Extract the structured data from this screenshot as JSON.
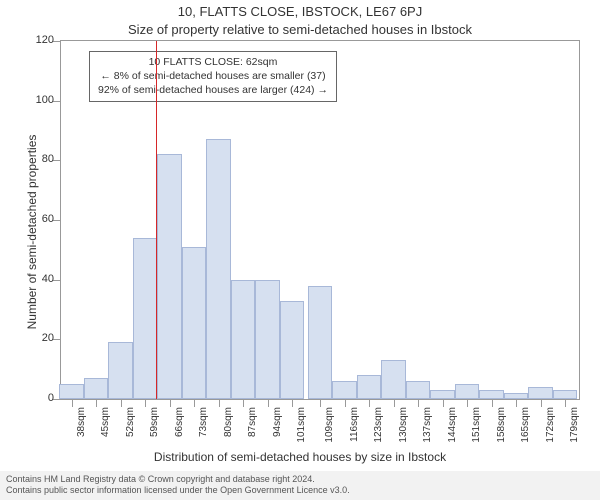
{
  "chart": {
    "type": "histogram",
    "title1": "10, FLATTS CLOSE, IBSTOCK, LE67 6PJ",
    "title2": "Size of property relative to semi-detached houses in Ibstock",
    "ylabel": "Number of semi-detached properties",
    "xlabel": "Distribution of semi-detached houses by size in Ibstock",
    "background_color": "#ffffff",
    "axis_color": "#999999",
    "bar_fill": "#d6e0f0",
    "bar_stroke": "#a8b8d8",
    "ref_line_color": "#d62728",
    "ref_line_x": 62,
    "xlim": [
      35,
      183
    ],
    "ylim": [
      0,
      120
    ],
    "ytick_step": 20,
    "yticks": [
      0,
      20,
      40,
      60,
      80,
      100,
      120
    ],
    "xtick_suffix": "sqm",
    "xticks": [
      38,
      45,
      52,
      59,
      66,
      73,
      80,
      87,
      94,
      101,
      109,
      116,
      123,
      130,
      137,
      144,
      151,
      158,
      165,
      172,
      179
    ],
    "bars": [
      {
        "x": 38,
        "v": 5
      },
      {
        "x": 45,
        "v": 7
      },
      {
        "x": 52,
        "v": 19
      },
      {
        "x": 59,
        "v": 54
      },
      {
        "x": 66,
        "v": 82
      },
      {
        "x": 73,
        "v": 51
      },
      {
        "x": 80,
        "v": 87
      },
      {
        "x": 87,
        "v": 40
      },
      {
        "x": 94,
        "v": 40
      },
      {
        "x": 101,
        "v": 33
      },
      {
        "x": 109,
        "v": 38
      },
      {
        "x": 116,
        "v": 6
      },
      {
        "x": 123,
        "v": 8
      },
      {
        "x": 130,
        "v": 13
      },
      {
        "x": 137,
        "v": 6
      },
      {
        "x": 144,
        "v": 3
      },
      {
        "x": 151,
        "v": 5
      },
      {
        "x": 158,
        "v": 3
      },
      {
        "x": 165,
        "v": 2
      },
      {
        "x": 172,
        "v": 4
      },
      {
        "x": 179,
        "v": 3
      }
    ],
    "bar_width_units": 7,
    "annotation": {
      "line1": "10 FLATTS CLOSE: 62sqm",
      "line2": "← 8% of semi-detached houses are smaller (37)",
      "line3": "92% of semi-detached houses are larger (424) →"
    },
    "title_fontsize": 13,
    "label_fontsize": 12,
    "tick_fontsize": 11,
    "xtick_fontsize": 10,
    "annot_fontsize": 10.5
  },
  "footer": {
    "line1": "Contains HM Land Registry data © Crown copyright and database right 2024.",
    "line2": "Contains public sector information licensed under the Open Government Licence v3.0.",
    "background_color": "#f2f2f2",
    "text_color": "#555555",
    "fontsize": 9
  }
}
